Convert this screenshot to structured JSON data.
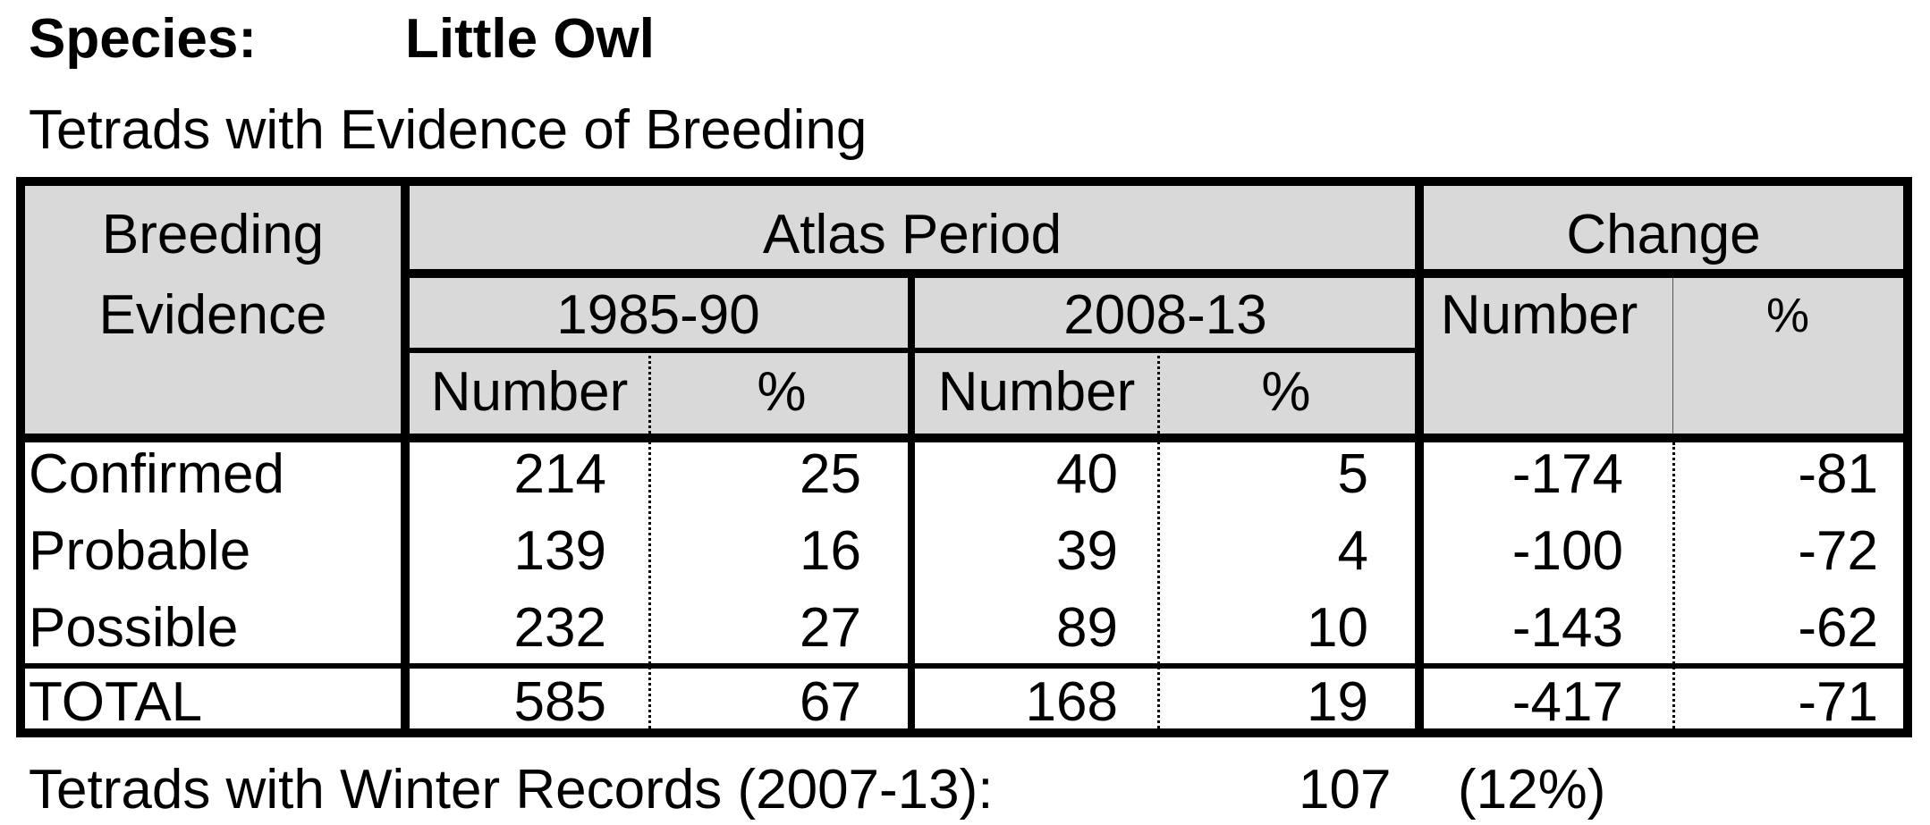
{
  "species": {
    "label": "Species:",
    "name": "Little Owl"
  },
  "subtitle": "Tetrads with Evidence of Breeding",
  "table": {
    "header": {
      "breeding_evidence_line1": "Breeding",
      "breeding_evidence_line2": "Evidence",
      "atlas_period": "Atlas Period",
      "change": "Change",
      "period1": "1985-90",
      "period2": "2008-13",
      "number": "Number",
      "percent": "%"
    },
    "rows": [
      {
        "label": "Confirmed",
        "n1": "214",
        "p1": "25",
        "n2": "40",
        "p2": "5",
        "cn": "-174",
        "cp": "-81"
      },
      {
        "label": "Probable",
        "n1": "139",
        "p1": "16",
        "n2": "39",
        "p2": "4",
        "cn": "-100",
        "cp": "-72"
      },
      {
        "label": "Possible",
        "n1": "232",
        "p1": "27",
        "n2": "89",
        "p2": "10",
        "cn": "-143",
        "cp": "-62"
      }
    ],
    "total": {
      "label": "TOTAL",
      "n1": "585",
      "p1": "67",
      "n2": "168",
      "p2": "19",
      "cn": "-417",
      "cp": "-71"
    }
  },
  "footer": {
    "label": "Tetrads with Winter Records (2007-13):",
    "value": "107",
    "percent": "(12%)"
  }
}
